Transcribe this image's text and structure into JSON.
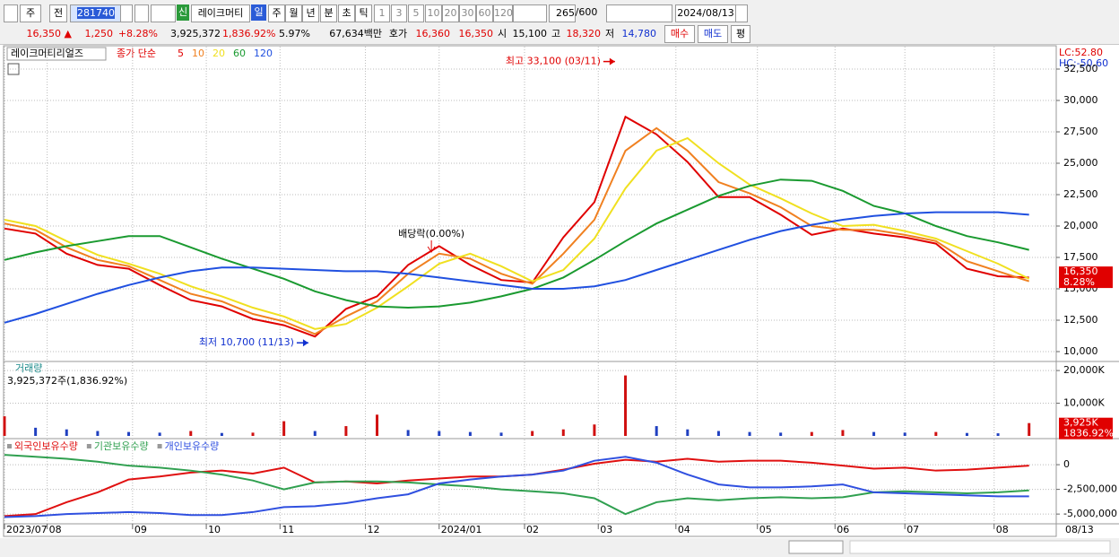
{
  "toolbar": {
    "row1": [
      "주",
      "전",
      "281740",
      "신",
      "레이크머티",
      "일",
      "주",
      "월",
      "년",
      "분",
      "초",
      "틱",
      "1",
      "3",
      "5",
      "10",
      "20",
      "30",
      "60",
      "120",
      "265",
      "/600",
      "2024/08/13"
    ],
    "row2": [
      "16,350 ▲",
      "1,250",
      "+8.28%",
      "3,925,372",
      "1,836.92%",
      "5.97%",
      "67,634백만",
      "호가",
      "16,360",
      "16,350",
      "시",
      "15,100",
      "고",
      "18,320",
      "저",
      "14,780",
      "매수",
      "매도",
      "평"
    ]
  },
  "chart_data": [
    {
      "type": "line",
      "title": "레이크머티리얼즈",
      "subtitle": "종가 단순",
      "lc_label": "LC:52.80",
      "hc_label": "HC:-50.60",
      "x": [
        0,
        8,
        16,
        24,
        32,
        40,
        48,
        56,
        64,
        72,
        80,
        88,
        96,
        104,
        112,
        120,
        128,
        136,
        144,
        152,
        160,
        168,
        176,
        184,
        192,
        200,
        208,
        216,
        224,
        232,
        240,
        248,
        256,
        264
      ],
      "xlim": [
        0,
        271
      ],
      "ylim": [
        9286,
        34286
      ],
      "yticks": [
        {
          "value": 10000,
          "label": "10,000"
        },
        {
          "value": 12500,
          "label": "12,500"
        },
        {
          "value": 15000,
          "label": "15,000"
        },
        {
          "value": 17500,
          "label": "17,500"
        },
        {
          "value": 20000,
          "label": "20,000"
        },
        {
          "value": 22500,
          "label": "22,500"
        },
        {
          "value": 25000,
          "label": "25,000"
        },
        {
          "value": 27500,
          "label": "27,500"
        },
        {
          "value": 30000,
          "label": "30,000"
        },
        {
          "value": 32500,
          "label": "32,500"
        }
      ],
      "series": [
        {
          "name": "5",
          "color": "#e00000",
          "values": [
            19800,
            19400,
            17800,
            16900,
            16600,
            15300,
            14100,
            13600,
            12600,
            12100,
            11200,
            13400,
            14400,
            16900,
            18400,
            16900,
            15700,
            15500,
            19100,
            21900,
            28700,
            27300,
            25100,
            22300,
            22300,
            20900,
            19300,
            19800,
            19400,
            19100,
            18600,
            16600,
            16000,
            15900
          ]
        },
        {
          "name": "10",
          "color": "#f08020",
          "values": [
            20200,
            19700,
            18300,
            17300,
            16800,
            15700,
            14600,
            14000,
            13000,
            12400,
            11400,
            12800,
            14000,
            16200,
            17800,
            17400,
            16200,
            15400,
            17800,
            20500,
            26000,
            27800,
            26000,
            23500,
            22600,
            21500,
            20000,
            19700,
            19700,
            19300,
            18800,
            17200,
            16400,
            15600
          ]
        },
        {
          "name": "20",
          "color": "#f0e020",
          "values": [
            20500,
            20000,
            18800,
            17700,
            17000,
            16200,
            15200,
            14400,
            13500,
            12800,
            11800,
            12200,
            13500,
            15200,
            17000,
            17800,
            16800,
            15600,
            16500,
            19000,
            23000,
            26000,
            27000,
            25000,
            23300,
            22200,
            21000,
            20000,
            20100,
            19600,
            19000,
            18000,
            17000,
            15800
          ]
        },
        {
          "name": "60",
          "color": "#1a9a30",
          "values": [
            17300,
            17900,
            18400,
            18800,
            19200,
            19200,
            18300,
            17400,
            16600,
            15800,
            14800,
            14100,
            13600,
            13500,
            13600,
            13900,
            14400,
            15000,
            15900,
            17300,
            18800,
            20200,
            21300,
            22400,
            23200,
            23700,
            23600,
            22800,
            21600,
            21000,
            20000,
            19200,
            18700,
            18100
          ]
        },
        {
          "name": "120",
          "color": "#2050e0",
          "values": [
            12300,
            13000,
            13800,
            14600,
            15300,
            15900,
            16400,
            16700,
            16700,
            16600,
            16500,
            16400,
            16400,
            16200,
            15900,
            15600,
            15300,
            15000,
            15000,
            15200,
            15700,
            16500,
            17300,
            18100,
            18900,
            19600,
            20100,
            20500,
            20800,
            21000,
            21100,
            21100,
            21100,
            20900
          ]
        }
      ],
      "high": {
        "label": "최고 33,100 (03/11)",
        "value": 33100,
        "x": 158
      },
      "low": {
        "label": "최저 10,700 (11/13)",
        "value": 10700,
        "x": 79
      },
      "dividend": {
        "label": "배당락(0.00%)",
        "x": 110
      },
      "last": {
        "value": 16350,
        "label": "16,350",
        "change_label": "8.28%"
      }
    },
    {
      "type": "bar",
      "title": "거래량",
      "subtitle": "3,925,372주(1,836.92%)",
      "x": [
        0,
        8,
        16,
        24,
        32,
        40,
        48,
        56,
        64,
        72,
        80,
        88,
        96,
        104,
        112,
        120,
        128,
        136,
        144,
        152,
        160,
        168,
        176,
        184,
        192,
        200,
        208,
        216,
        224,
        232,
        240,
        248,
        256,
        264
      ],
      "xlim": [
        0,
        271
      ],
      "ylim": [
        0,
        22500
      ],
      "yticks": [
        {
          "value": 10000,
          "label": "10,000K"
        },
        {
          "value": 20000,
          "label": "20,000K"
        }
      ],
      "up_color": "#d01010",
      "down_color": "#2040c0",
      "values": [
        6000,
        2500,
        2000,
        1500,
        1200,
        1000,
        1500,
        900,
        1000,
        4500,
        1500,
        3000,
        6500,
        1800,
        1500,
        1200,
        1000,
        1500,
        2000,
        3500,
        18500,
        3000,
        2000,
        1500,
        1200,
        1000,
        1200,
        1800,
        1200,
        1000,
        1200,
        900,
        800,
        3925
      ],
      "last": {
        "value": 3925,
        "label": "3,925K",
        "change_label": "1836.92%"
      }
    },
    {
      "type": "line",
      "x": [
        0,
        8,
        16,
        24,
        32,
        40,
        48,
        56,
        64,
        72,
        80,
        88,
        96,
        104,
        112,
        120,
        128,
        136,
        144,
        152,
        160,
        168,
        176,
        184,
        192,
        200,
        208,
        216,
        224,
        232,
        240,
        248,
        256,
        264
      ],
      "xlim": [
        0,
        271
      ],
      "ylim": [
        -6350000,
        2550000
      ],
      "yticks": [
        0,
        {
          "value": -2500000,
          "label": "-2,500,000"
        },
        {
          "value": -5000000,
          "label": "-5,000,000"
        }
      ],
      "xticks": [
        {
          "value": 0,
          "label": "2023/07"
        },
        {
          "value": 11,
          "label": "08"
        },
        {
          "value": 33,
          "label": "09"
        },
        {
          "value": 52,
          "label": "10"
        },
        {
          "value": 71,
          "label": "11"
        },
        {
          "value": 93,
          "label": "12"
        },
        {
          "value": 112,
          "label": "2024/01"
        },
        {
          "value": 134,
          "label": "02"
        },
        {
          "value": 153,
          "label": "03"
        },
        {
          "value": 173,
          "label": "04"
        },
        {
          "value": 194,
          "label": "05"
        },
        {
          "value": 214,
          "label": "06"
        },
        {
          "value": 232,
          "label": "07"
        },
        {
          "value": 255,
          "label": "08"
        }
      ],
      "x_end_label": "08/13",
      "series": [
        {
          "name": "외국인보유수량",
          "color": "#e01010",
          "values": [
            -5200000,
            -5000000,
            -3800000,
            -2800000,
            -1500000,
            -1200000,
            -800000,
            -600000,
            -900000,
            -300000,
            -1800000,
            -1700000,
            -1900000,
            -1600000,
            -1400000,
            -1200000,
            -1200000,
            -1000000,
            -500000,
            100000,
            500000,
            300000,
            600000,
            300000,
            400000,
            400000,
            200000,
            -100000,
            -400000,
            -300000,
            -600000,
            -500000,
            -300000,
            -100000
          ]
        },
        {
          "name": "기관보유수량",
          "color": "#30a050",
          "values": [
            1000000,
            800000,
            600000,
            300000,
            -100000,
            -300000,
            -600000,
            -1000000,
            -1600000,
            -2500000,
            -1800000,
            -1700000,
            -1700000,
            -1800000,
            -2000000,
            -2200000,
            -2500000,
            -2700000,
            -2900000,
            -3400000,
            -5000000,
            -3800000,
            -3400000,
            -3600000,
            -3400000,
            -3300000,
            -3400000,
            -3300000,
            -2800000,
            -2700000,
            -2800000,
            -2900000,
            -2800000,
            -2600000
          ]
        },
        {
          "name": "개인보유수량",
          "color": "#3050e0",
          "values": [
            -5300000,
            -5200000,
            -5000000,
            -4900000,
            -4800000,
            -4900000,
            -5100000,
            -5100000,
            -4800000,
            -4300000,
            -4200000,
            -3900000,
            -3400000,
            -3000000,
            -1900000,
            -1500000,
            -1200000,
            -1000000,
            -600000,
            400000,
            800000,
            200000,
            -1000000,
            -2000000,
            -2300000,
            -2300000,
            -2200000,
            -2000000,
            -2800000,
            -2900000,
            -3000000,
            -3100000,
            -3200000,
            -3200000
          ]
        }
      ]
    }
  ]
}
